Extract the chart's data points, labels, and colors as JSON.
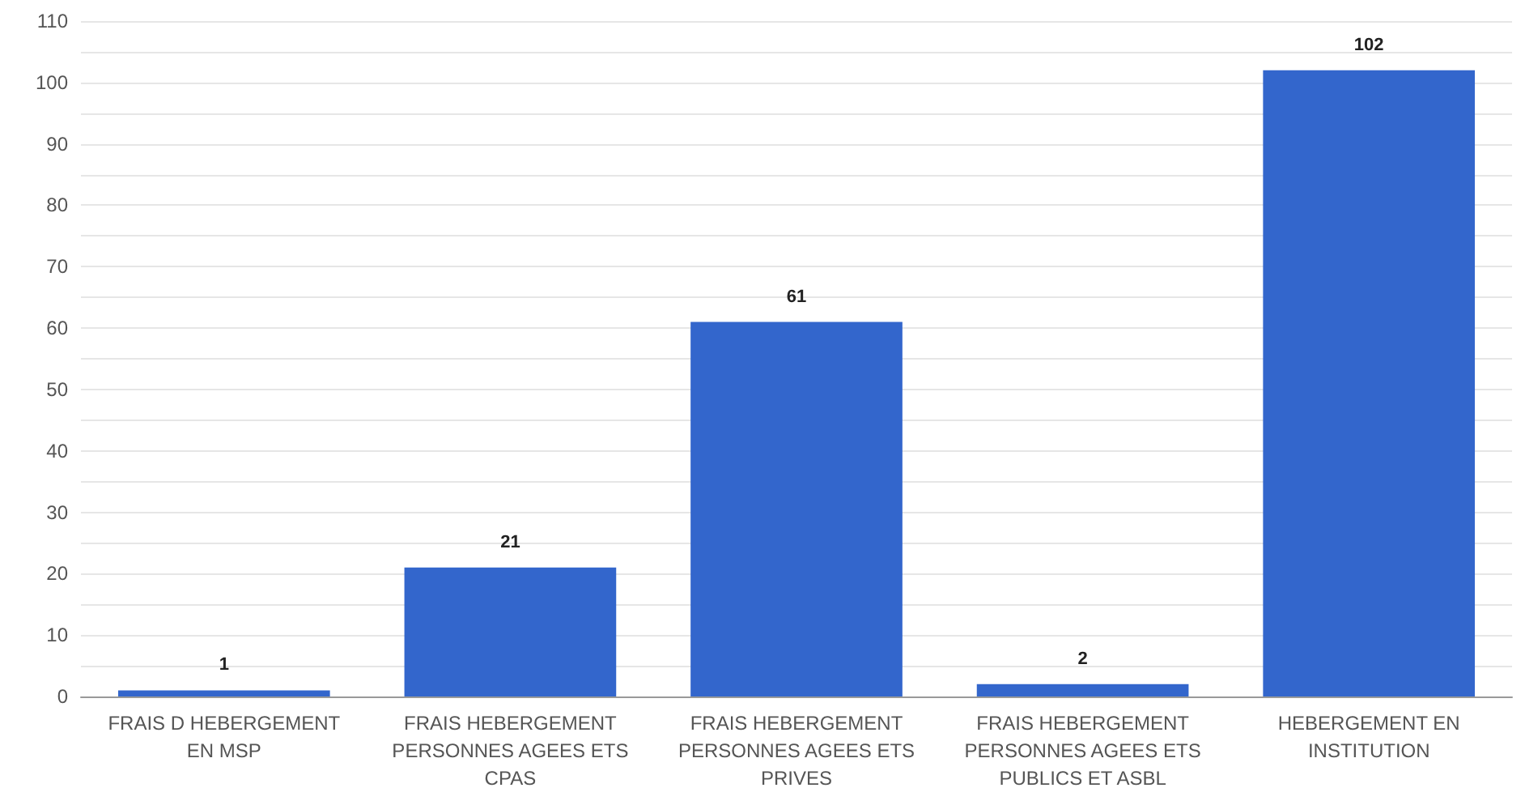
{
  "chart_data": {
    "type": "bar",
    "categories": [
      "FRAIS D HEBERGEMENT EN MSP",
      "FRAIS HEBERGEMENT PERSONNES AGEES ETS CPAS",
      "FRAIS HEBERGEMENT PERSONNES AGEES ETS PRIVES",
      "FRAIS HEBERGEMENT PERSONNES AGEES ETS PUBLICS ET ASBL",
      "HEBERGEMENT EN INSTITUTION"
    ],
    "values": [
      1,
      21,
      61,
      2,
      102
    ],
    "color": "#3366cc",
    "ylim": [
      0,
      110
    ],
    "yticks": [
      0,
      {
        "value": 5,
        "label": null
      },
      10,
      {
        "value": 15,
        "label": null
      },
      20,
      {
        "value": 25,
        "label": null
      },
      30,
      {
        "value": 35,
        "label": null
      },
      40,
      {
        "value": 45,
        "label": null
      },
      50,
      {
        "value": 55,
        "label": null
      },
      60,
      {
        "value": 65,
        "label": null
      },
      70,
      {
        "value": 75,
        "label": null
      },
      80,
      {
        "value": 85,
        "label": null
      },
      90,
      {
        "value": 95,
        "label": null
      },
      100,
      {
        "value": 105,
        "label": null
      },
      110
    ],
    "grid": "y",
    "data_labels": true
  }
}
